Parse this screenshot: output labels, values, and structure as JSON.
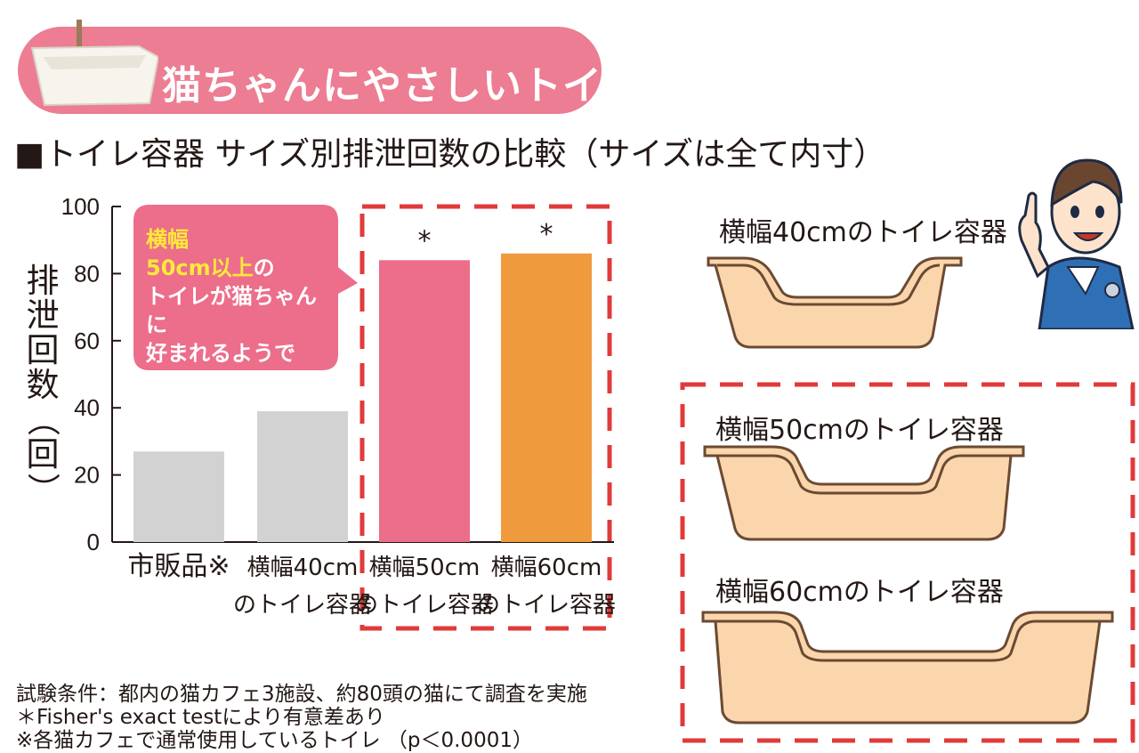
{
  "banner": {
    "title": "猫ちゃんにやさしいトイレ"
  },
  "subtitle": "■トイレ容器 サイズ別排泄回数の比較（サイズは全て内寸）",
  "callout": {
    "line1": "横幅",
    "line2": "50cm以上",
    "line2_suffix": "の",
    "line3": "トイレが猫ちゃんに",
    "line4": "好まれるようです。"
  },
  "ylabel_chars": [
    "排",
    "泄",
    "回",
    "数",
    "（",
    "回",
    "）"
  ],
  "chart_data": {
    "type": "bar",
    "categories": [
      "市販品※",
      "横幅40cm のトイレ容器",
      "横幅50cm のトイレ容器",
      "横幅60cm のトイレ容器"
    ],
    "category_lines": [
      [
        "市販品※"
      ],
      [
        "横幅40cm",
        "のトイレ容器"
      ],
      [
        "横幅50cm",
        "のトイレ容器"
      ],
      [
        "横幅60cm",
        "のトイレ容器"
      ]
    ],
    "values": [
      27,
      39,
      84,
      86
    ],
    "colors": [
      "#d3d2d2",
      "#d3d2d2",
      "#ec6e8a",
      "#f09a3e"
    ],
    "significance": [
      "",
      "",
      "*",
      "*"
    ],
    "ylabel": "排泄回数（回）",
    "ylim": [
      0,
      100
    ],
    "yticks": [
      0,
      20,
      40,
      60,
      80,
      100
    ],
    "highlight_color": "#e03a3a"
  },
  "trays": {
    "t40": "横幅40cmのトイレ容器",
    "t50": "横幅50cmのトイレ容器",
    "t60": "横幅60cmのトイレ容器",
    "fill": "#fbd6ad",
    "stroke": "#6b4a33"
  },
  "notes": {
    "n1": "試験条件：都内の猫カフェ3施設、約80頭の猫にて調査を実施",
    "n2": "＊Fisher's exact testにより有意差あり",
    "n3": "※各猫カフェで通常使用しているトイレ （p＜0.0001）"
  }
}
